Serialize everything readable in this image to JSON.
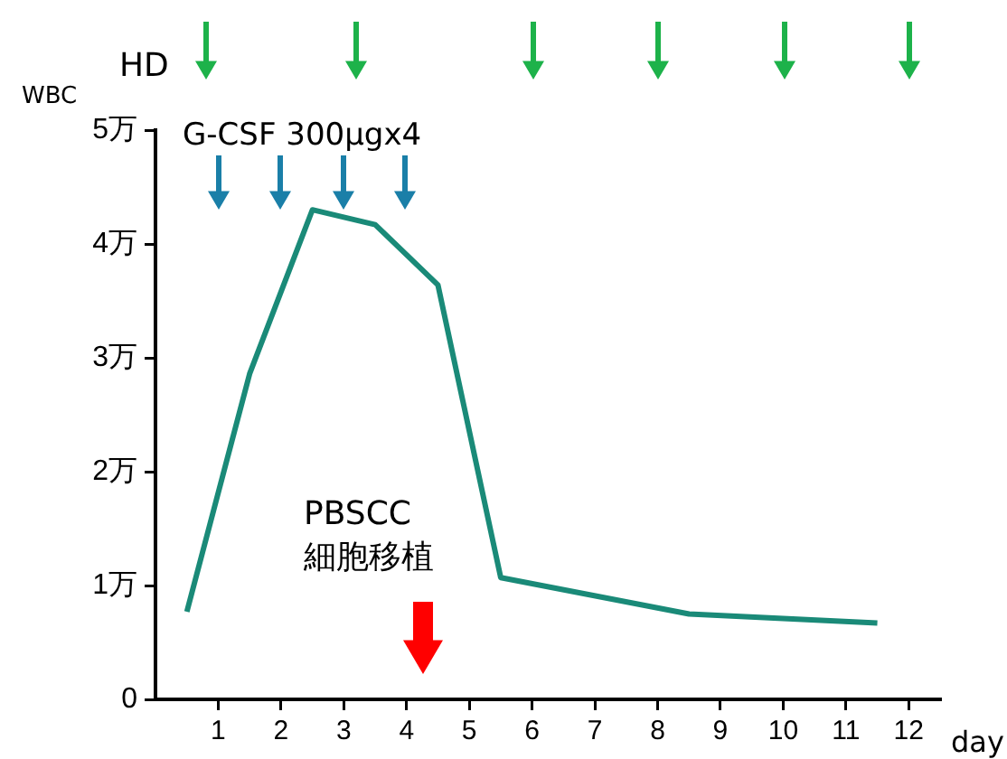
{
  "chart_data": {
    "type": "line",
    "xlabel": "day",
    "ylabel": "WBC",
    "annotations": [
      "HD",
      "G-CSF 300μgx4",
      "PBSCC\n細胞移植"
    ],
    "x": [
      0.5,
      1.5,
      2.5,
      3.5,
      4.5,
      5.5,
      8.5,
      11.5
    ],
    "series": [
      {
        "color": "#1a8a78",
        "values": [
          0.77,
          2.86,
          4.3,
          4.17,
          3.64,
          1.07,
          0.75,
          0.67
        ]
      }
    ],
    "xlim": [
      0,
      12.5
    ],
    "xticks": [
      1,
      2,
      3,
      4,
      5,
      6,
      7,
      8,
      9,
      10,
      11,
      12
    ],
    "ylim": [
      0,
      5
    ],
    "yticks": [
      0,
      {
        "value": 1,
        "label": "1万"
      },
      {
        "value": 2,
        "label": "2万"
      },
      {
        "value": 3,
        "label": "3万"
      },
      {
        "value": 4,
        "label": "4万"
      },
      {
        "value": 5,
        "label": "5万"
      }
    ],
    "grid": false,
    "legend": false,
    "marker": "none",
    "line_style": "solid"
  }
}
